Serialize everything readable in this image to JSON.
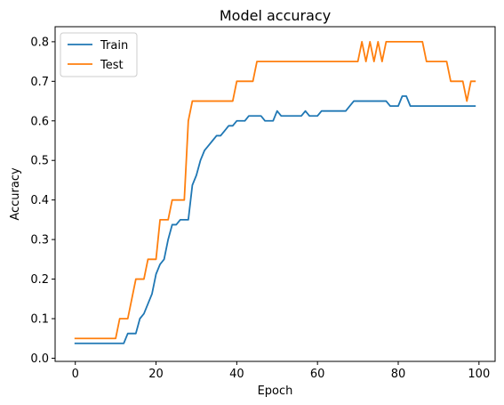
{
  "chart_data": {
    "type": "line",
    "title": "Model accuracy",
    "xlabel": "Epoch",
    "ylabel": "Accuracy",
    "xlim": [
      -5,
      104
    ],
    "ylim": [
      -0.008,
      0.838
    ],
    "xticks": [
      0,
      20,
      40,
      60,
      80,
      100
    ],
    "yticks": [
      0.0,
      0.1,
      0.2,
      0.3,
      0.4,
      0.5,
      0.6,
      0.7,
      0.8
    ],
    "xtick_labels": [
      "0",
      "20",
      "40",
      "60",
      "80",
      "100"
    ],
    "ytick_labels": [
      "0.0",
      "0.1",
      "0.2",
      "0.3",
      "0.4",
      "0.5",
      "0.6",
      "0.7",
      "0.8"
    ],
    "grid": false,
    "legend_position": "upper-left",
    "series": [
      {
        "name": "Train",
        "color": "#1f77b4",
        "x": [
          0,
          1,
          2,
          3,
          4,
          5,
          6,
          7,
          8,
          9,
          10,
          11,
          12,
          13,
          14,
          15,
          16,
          17,
          18,
          19,
          20,
          21,
          22,
          23,
          24,
          25,
          26,
          27,
          28,
          29,
          30,
          31,
          32,
          33,
          34,
          35,
          36,
          37,
          38,
          39,
          40,
          41,
          42,
          43,
          44,
          45,
          46,
          47,
          48,
          49,
          50,
          51,
          52,
          53,
          54,
          55,
          56,
          57,
          58,
          59,
          60,
          61,
          62,
          63,
          64,
          65,
          66,
          67,
          68,
          69,
          70,
          71,
          72,
          73,
          74,
          75,
          76,
          77,
          78,
          79,
          80,
          81,
          82,
          83,
          84,
          85,
          86,
          87,
          88,
          89,
          90,
          91,
          92,
          93,
          94,
          95,
          96,
          97,
          98,
          99
        ],
        "values": [
          0.0375,
          0.0375,
          0.0375,
          0.0375,
          0.0375,
          0.0375,
          0.0375,
          0.0375,
          0.0375,
          0.0375,
          0.0375,
          0.0375,
          0.0375,
          0.0625,
          0.0625,
          0.0625,
          0.1,
          0.1125,
          0.1375,
          0.1625,
          0.2125,
          0.2375,
          0.25,
          0.3,
          0.3375,
          0.3375,
          0.35,
          0.35,
          0.35,
          0.4375,
          0.4625,
          0.5,
          0.525,
          0.5375,
          0.55,
          0.5625,
          0.5625,
          0.575,
          0.5875,
          0.5875,
          0.6,
          0.6,
          0.6,
          0.6125,
          0.6125,
          0.6125,
          0.6125,
          0.6,
          0.6,
          0.6,
          0.625,
          0.6125,
          0.6125,
          0.6125,
          0.6125,
          0.6125,
          0.6125,
          0.625,
          0.6125,
          0.6125,
          0.6125,
          0.625,
          0.625,
          0.625,
          0.625,
          0.625,
          0.625,
          0.625,
          0.6375,
          0.65,
          0.65,
          0.65,
          0.65,
          0.65,
          0.65,
          0.65,
          0.65,
          0.65,
          0.6375,
          0.6375,
          0.6375,
          0.6625,
          0.6625,
          0.6375,
          0.6375,
          0.6375,
          0.6375,
          0.6375,
          0.6375,
          0.6375,
          0.6375,
          0.6375,
          0.6375,
          0.6375,
          0.6375,
          0.6375,
          0.6375,
          0.6375,
          0.6375,
          0.6375
        ]
      },
      {
        "name": "Test",
        "color": "#ff7f0e",
        "x": [
          0,
          1,
          2,
          3,
          4,
          5,
          6,
          7,
          8,
          9,
          10,
          11,
          12,
          13,
          14,
          15,
          16,
          17,
          18,
          19,
          20,
          21,
          22,
          23,
          24,
          25,
          26,
          27,
          28,
          29,
          30,
          31,
          32,
          33,
          34,
          35,
          36,
          37,
          38,
          39,
          40,
          41,
          42,
          43,
          44,
          45,
          46,
          47,
          48,
          49,
          50,
          51,
          52,
          53,
          54,
          55,
          56,
          57,
          58,
          59,
          60,
          61,
          62,
          63,
          64,
          65,
          66,
          67,
          68,
          69,
          70,
          71,
          72,
          73,
          74,
          75,
          76,
          77,
          78,
          79,
          80,
          81,
          82,
          83,
          84,
          85,
          86,
          87,
          88,
          89,
          90,
          91,
          92,
          93,
          94,
          95,
          96,
          97,
          98,
          99
        ],
        "values": [
          0.05,
          0.05,
          0.05,
          0.05,
          0.05,
          0.05,
          0.05,
          0.05,
          0.05,
          0.05,
          0.05,
          0.1,
          0.1,
          0.1,
          0.15,
          0.2,
          0.2,
          0.2,
          0.25,
          0.25,
          0.25,
          0.35,
          0.35,
          0.35,
          0.4,
          0.4,
          0.4,
          0.4,
          0.6,
          0.65,
          0.65,
          0.65,
          0.65,
          0.65,
          0.65,
          0.65,
          0.65,
          0.65,
          0.65,
          0.65,
          0.7,
          0.7,
          0.7,
          0.7,
          0.7,
          0.75,
          0.75,
          0.75,
          0.75,
          0.75,
          0.75,
          0.75,
          0.75,
          0.75,
          0.75,
          0.75,
          0.75,
          0.75,
          0.75,
          0.75,
          0.75,
          0.75,
          0.75,
          0.75,
          0.75,
          0.75,
          0.75,
          0.75,
          0.75,
          0.75,
          0.75,
          0.8,
          0.75,
          0.8,
          0.75,
          0.8,
          0.75,
          0.8,
          0.8,
          0.8,
          0.8,
          0.8,
          0.8,
          0.8,
          0.8,
          0.8,
          0.8,
          0.75,
          0.75,
          0.75,
          0.75,
          0.75,
          0.75,
          0.7,
          0.7,
          0.7,
          0.7,
          0.65,
          0.7,
          0.7
        ]
      }
    ]
  }
}
